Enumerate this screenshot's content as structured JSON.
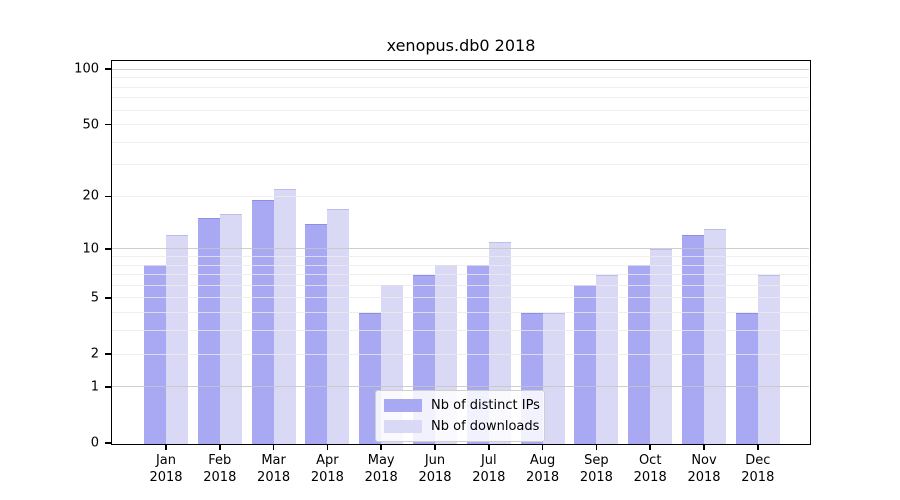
{
  "title": "xenopus.db0 2018",
  "chart_data": {
    "type": "bar",
    "title": "xenopus.db0 2018",
    "scale": "log10(1+y)",
    "grid": true,
    "legend_position": "lower center",
    "categories": [
      "Jan 2018",
      "Feb 2018",
      "Mar 2018",
      "Apr 2018",
      "May 2018",
      "Jun 2018",
      "Jul 2018",
      "Aug 2018",
      "Sep 2018",
      "Oct 2018",
      "Nov 2018",
      "Dec 2018"
    ],
    "series": [
      {
        "name": "Nb of distinct IPs",
        "color": "#a9a9f3",
        "values": [
          8,
          15,
          19,
          14,
          4,
          7,
          8,
          4,
          6,
          8,
          12,
          4
        ]
      },
      {
        "name": "Nb of downloads",
        "color": "#d9d9f6",
        "values": [
          12,
          16,
          22,
          17,
          6,
          8,
          11,
          4,
          7,
          10,
          13,
          7
        ]
      }
    ],
    "ylim": [
      0,
      100
    ],
    "y_ticks": [
      100,
      50,
      20,
      10,
      5,
      2,
      1,
      0
    ],
    "major_gridlines": [
      1,
      10,
      100
    ],
    "minor_gridlines": [
      2,
      3,
      4,
      5,
      6,
      7,
      8,
      9,
      20,
      30,
      40,
      50,
      60,
      70,
      80,
      90
    ],
    "axis_color": "#000000",
    "major_grid_color": "#c8c8c8",
    "minor_grid_color": "#ececec",
    "background_color": "#ffffff"
  }
}
